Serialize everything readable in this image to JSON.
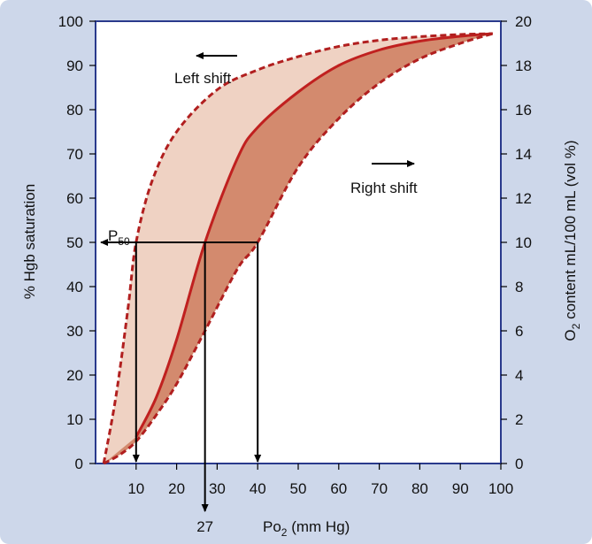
{
  "chart_data": {
    "type": "line",
    "xlabel": {
      "main": "Po",
      "sub": "2",
      "rest": " (mm Hg)"
    },
    "ylabel_left": "% Hgb saturation",
    "ylabel_right": {
      "main": "O",
      "sub": "2",
      "rest": " content mL/100 mL (vol %)"
    },
    "x_ticks": [
      10,
      20,
      30,
      40,
      50,
      60,
      70,
      80,
      90,
      100
    ],
    "y_ticks_left": [
      0,
      10,
      20,
      30,
      40,
      50,
      60,
      70,
      80,
      90,
      100
    ],
    "y_ticks_right": [
      0,
      2,
      4,
      6,
      8,
      10,
      12,
      14,
      16,
      18,
      20
    ],
    "xlim": [
      0,
      100
    ],
    "ylim_left": [
      0,
      100
    ],
    "ylim_right": [
      0,
      20
    ],
    "series": [
      {
        "style": "solid",
        "color": "#c0201f",
        "x": [
          10,
          15,
          20,
          27,
          35,
          40,
          50,
          60,
          70,
          80,
          90,
          98
        ],
        "y": [
          6,
          15,
          28,
          50,
          69,
          76,
          84,
          90,
          93.5,
          95.5,
          96.6,
          97.2
        ]
      },
      {
        "style": "dashed",
        "color": "#b11f1f",
        "x": [
          2,
          5,
          8,
          10,
          14,
          20,
          30,
          40,
          50,
          60,
          70,
          80,
          90,
          98
        ],
        "y": [
          0,
          15,
          35,
          50,
          64,
          75,
          84.5,
          89,
          92,
          94.3,
          95.7,
          96.5,
          97,
          97.2
        ]
      },
      {
        "style": "dashed",
        "color": "#b11f1f",
        "x": [
          2,
          6,
          10,
          15,
          20,
          27,
          35,
          40,
          50,
          60,
          70,
          80,
          90,
          98
        ],
        "y": [
          0,
          2,
          5,
          11,
          18,
          30,
          44,
          50,
          67,
          78,
          86,
          91.5,
          95,
          97.2
        ]
      }
    ],
    "p50_marker": {
      "label_main": "P",
      "label_sub": "50",
      "y": 50,
      "points_x": [
        10,
        27,
        40
      ],
      "highlight_x_label": "27"
    },
    "annotations": {
      "left_shift": "Left shift",
      "right_shift": "Right shift"
    },
    "colors": {
      "background": "#cdd7ea",
      "plot_bg": "#ffffff",
      "left_fill": "#efd2c3",
      "right_fill": "#d38a6e",
      "curve": "#c0201f"
    }
  }
}
